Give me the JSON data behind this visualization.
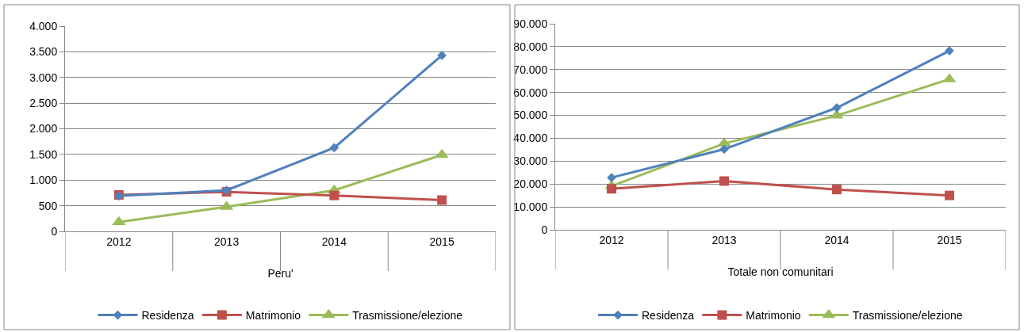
{
  "chart_data": [
    {
      "type": "line",
      "xlabel": "Peru'",
      "categories": [
        "2012",
        "2013",
        "2014",
        "2015"
      ],
      "ylim": [
        0,
        4000
      ],
      "yticks": [
        0,
        {
          "value": 500,
          "label": "500"
        },
        {
          "value": 1000,
          "label": "1.000"
        },
        {
          "value": 1500,
          "label": "1.500"
        },
        {
          "value": 2000,
          "label": "2.000"
        },
        {
          "value": 2500,
          "label": "2.500"
        },
        {
          "value": 3000,
          "label": "3.000"
        },
        {
          "value": 3500,
          "label": "3.500"
        },
        {
          "value": 4000,
          "label": "4.000"
        }
      ],
      "grid": "y",
      "legend": "bottom",
      "series": [
        {
          "name": "Residenza",
          "color": "#4f81bd",
          "marker": "diamond",
          "values": [
            690,
            800,
            1630,
            3430
          ]
        },
        {
          "name": "Matrimonio",
          "color": "#c0504d",
          "marker": "square",
          "values": [
            710,
            770,
            700,
            610
          ]
        },
        {
          "name": "Trasmissione/elezione",
          "color": "#9bbb59",
          "marker": "triangle",
          "values": [
            180,
            480,
            800,
            1490
          ]
        }
      ]
    },
    {
      "type": "line",
      "xlabel": "Totale non comunitari",
      "categories": [
        "2012",
        "2013",
        "2014",
        "2015"
      ],
      "ylim": [
        0,
        90000
      ],
      "yticks": [
        0,
        {
          "value": 10000,
          "label": "10.000"
        },
        {
          "value": 20000,
          "label": "20.000"
        },
        {
          "value": 30000,
          "label": "30.000"
        },
        {
          "value": 40000,
          "label": "40.000"
        },
        {
          "value": 50000,
          "label": "50.000"
        },
        {
          "value": 60000,
          "label": "60.000"
        },
        {
          "value": 70000,
          "label": "70.000"
        },
        {
          "value": 80000,
          "label": "80.000"
        },
        {
          "value": 90000,
          "label": "90.000"
        }
      ],
      "grid": "y",
      "legend": "bottom",
      "series": [
        {
          "name": "Residenza",
          "color": "#4f81bd",
          "marker": "diamond",
          "values": [
            22800,
            35200,
            53300,
            78200
          ]
        },
        {
          "name": "Matrimonio",
          "color": "#c0504d",
          "marker": "square",
          "values": [
            17900,
            21300,
            17600,
            15000
          ]
        },
        {
          "name": "Trasmissione/elezione",
          "color": "#9bbb59",
          "marker": "triangle",
          "values": [
            19100,
            37700,
            49900,
            65800
          ]
        }
      ]
    }
  ]
}
